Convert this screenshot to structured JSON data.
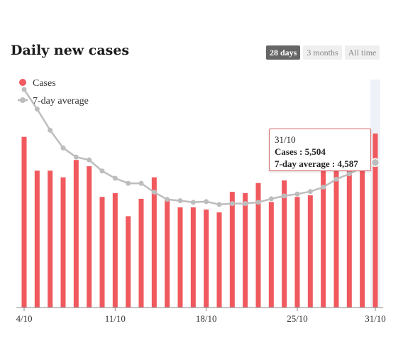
{
  "header": {
    "title": "Daily new cases",
    "range_tabs": [
      {
        "label": "28 days",
        "active": true
      },
      {
        "label": "3 months",
        "active": false
      },
      {
        "label": "All time",
        "active": false
      }
    ]
  },
  "colors": {
    "bar": "#f0595e",
    "line": "#bdbdbd",
    "highlight_band": "#eef2f8",
    "axis": "#888888",
    "tooltip_border": "#e06a6a"
  },
  "tooltip": {
    "date": "31/10",
    "cases_label": "Cases : ",
    "cases_value": "5,504",
    "avg_label": "7-day average : ",
    "avg_value": "4,587"
  },
  "chart_data": {
    "type": "bar",
    "title": "Daily new cases",
    "xlabel": "",
    "ylabel": "",
    "ylim": [
      0,
      8000
    ],
    "grid": false,
    "legend_position": "top-left",
    "x_tick_labels": [
      "4/10",
      "11/10",
      "18/10",
      "25/10",
      "31/10"
    ],
    "x_tick_indices": [
      0,
      7,
      14,
      21,
      27
    ],
    "categories": [
      "4/10",
      "5/10",
      "6/10",
      "7/10",
      "8/10",
      "9/10",
      "10/10",
      "11/10",
      "12/10",
      "13/10",
      "14/10",
      "15/10",
      "16/10",
      "17/10",
      "18/10",
      "19/10",
      "20/10",
      "21/10",
      "22/10",
      "23/10",
      "24/10",
      "25/10",
      "26/10",
      "27/10",
      "28/10",
      "29/10",
      "30/10",
      "31/10"
    ],
    "highlighted_index": 27,
    "series": [
      {
        "name": "Cases",
        "type": "bar",
        "values": [
          5400,
          4330,
          4330,
          4120,
          4670,
          4470,
          3500,
          3620,
          2890,
          3440,
          4120,
          3420,
          3170,
          3170,
          3100,
          3010,
          3660,
          3620,
          3940,
          3340,
          4020,
          3500,
          3550,
          4370,
          4900,
          4850,
          4950,
          5504
        ]
      },
      {
        "name": "7-day average",
        "type": "line",
        "values": [
          6900,
          6280,
          5610,
          5050,
          4760,
          4670,
          4320,
          4090,
          3930,
          3930,
          3650,
          3420,
          3380,
          3330,
          3350,
          3260,
          3290,
          3290,
          3330,
          3440,
          3530,
          3590,
          3670,
          3810,
          4060,
          4230,
          4440,
          4587
        ]
      }
    ]
  }
}
